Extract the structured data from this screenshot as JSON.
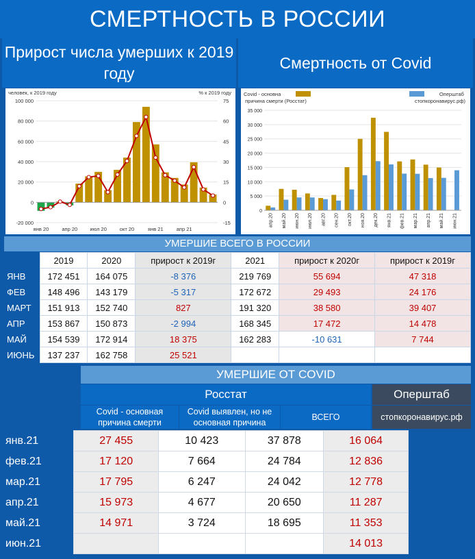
{
  "title": "СМЕРТНОСТЬ В РОССИИ",
  "left_header": "Прирост числа умерших к 2019 году",
  "right_header": "Смертность от Covid",
  "chart_left": {
    "type": "bar",
    "left_axis_label": "человек, к 2019 году",
    "right_axis_label": "% к 2019 году",
    "y_ticks": [
      "100 000",
      "80 000",
      "60 000",
      "40 000",
      "20 000",
      "0",
      "-20 000"
    ],
    "y2_ticks": [
      "75",
      "60",
      "45",
      "30",
      "15",
      "0",
      "-15"
    ],
    "x_labels": [
      "янв 20",
      "апр 20",
      "июл 20",
      "окт 20",
      "янв 21",
      "апр 21"
    ],
    "ylim": [
      -20000,
      100000
    ],
    "y2lim": [
      -15,
      75
    ],
    "values": [
      -8376,
      -5317,
      827,
      -2994,
      18375,
      25521,
      30000,
      12000,
      32000,
      44000,
      79000,
      94000,
      57000,
      29500,
      24000,
      17500,
      39400,
      14500,
      7744
    ],
    "pct": [
      -4.9,
      -3.6,
      0.5,
      -1.9,
      11.9,
      18.6,
      19.5,
      7.5,
      20.5,
      30.5,
      49,
      63,
      33,
      20,
      16,
      11,
      26,
      9.5,
      5
    ],
    "colors": {
      "positive": "#bf9000",
      "negative": "#1ea64a",
      "line": "#c00000"
    }
  },
  "chart_right": {
    "type": "bar",
    "legend_left": "Covid - основная причина смерти (Росстат)",
    "legend_right": "Оперштаб (стопкоронавирус.рф)",
    "y_ticks": [
      "35 000",
      "30 000",
      "25 000",
      "20 000",
      "15 000",
      "10 000",
      "5 000",
      "0"
    ],
    "ylim": [
      0,
      35000
    ],
    "categories": [
      "апр.20",
      "май.20",
      "июн.20",
      "июл.20",
      "авг.20",
      "сен.20",
      "окт.20",
      "ноя.20",
      "дек.20",
      "янв.21",
      "фев.21",
      "мар.21",
      "апр.21",
      "май.21",
      "июн.21"
    ],
    "series": [
      {
        "name": "Covid - основная причина смерти (Росстат)",
        "values": [
          1600,
          7500,
          7200,
          5900,
          4300,
          5400,
          15100,
          25000,
          32400,
          27455,
          17120,
          17795,
          15973,
          14971,
          null
        ]
      },
      {
        "name": "Оперштаб (стопкоронавирус.рф)",
        "values": [
          1000,
          3700,
          4500,
          4500,
          3900,
          3400,
          7300,
          12300,
          17200,
          16064,
          12836,
          12778,
          11287,
          11353,
          14013
        ]
      }
    ],
    "colors": {
      "rosstat": "#bf9000",
      "opershtab": "#5b9bd5"
    }
  },
  "deaths_table": {
    "title": "УМЕРШИЕ ВСЕГО В РОССИИ",
    "headers": [
      "2019",
      "2020",
      "прирост к 2019г",
      "2021",
      "прирост к 2020г",
      "прирост к 2019г"
    ],
    "rows": [
      {
        "label": "ЯНВ",
        "v2019": "172 451",
        "v2020": "164 075",
        "d2020": "-8 376",
        "v2021": "219 769",
        "d2021_2020": "55 694",
        "d2021_2019": "47 318"
      },
      {
        "label": "ФЕВ",
        "v2019": "148 496",
        "v2020": "143 179",
        "d2020": "-5 317",
        "v2021": "172 672",
        "d2021_2020": "29 493",
        "d2021_2019": "24 176"
      },
      {
        "label": "МАРТ",
        "v2019": "151 913",
        "v2020": "152 740",
        "d2020": "827",
        "v2021": "191 320",
        "d2021_2020": "38 580",
        "d2021_2019": "39 407"
      },
      {
        "label": "АПР",
        "v2019": "153 867",
        "v2020": "150 873",
        "d2020": "-2 994",
        "v2021": "168 345",
        "d2021_2020": "17 472",
        "d2021_2019": "14 478"
      },
      {
        "label": "МАЙ",
        "v2019": "154 539",
        "v2020": "172 914",
        "d2020": "18 375",
        "v2021": "162 283",
        "d2021_2020": "-10 631",
        "d2021_2019": "7 744"
      },
      {
        "label": "ИЮНЬ",
        "v2019": "137 237",
        "v2020": "162 758",
        "d2020": "25 521",
        "v2021": "",
        "d2021_2020": "",
        "d2021_2019": ""
      }
    ]
  },
  "covid_table": {
    "title": "УМЕРШИЕ ОТ COVID",
    "group_rosstat": "Росстат",
    "group_opershtab": "Оперштаб",
    "col_main": "Covid - основная причина смерти",
    "col_found": "Covid выявлен, но не основная причина",
    "col_total": "ВСЕГО",
    "col_site": "стопкоронавирус.рф",
    "rows": [
      {
        "label": "янв.21",
        "main": "27 455",
        "found": "10 423",
        "total": "37 878",
        "site": "16 064"
      },
      {
        "label": "фев.21",
        "main": "17 120",
        "found": "7 664",
        "total": "24 784",
        "site": "12 836"
      },
      {
        "label": "мар.21",
        "main": "17 795",
        "found": "6 247",
        "total": "24 042",
        "site": "12 778"
      },
      {
        "label": "апр.21",
        "main": "15 973",
        "found": "4 677",
        "total": "20 650",
        "site": "11 287"
      },
      {
        "label": "май.21",
        "main": "14 971",
        "found": "3 724",
        "total": "18 695",
        "site": "11 353"
      },
      {
        "label": "июн.21",
        "main": "",
        "found": "",
        "total": "",
        "site": "14 013"
      }
    ]
  }
}
